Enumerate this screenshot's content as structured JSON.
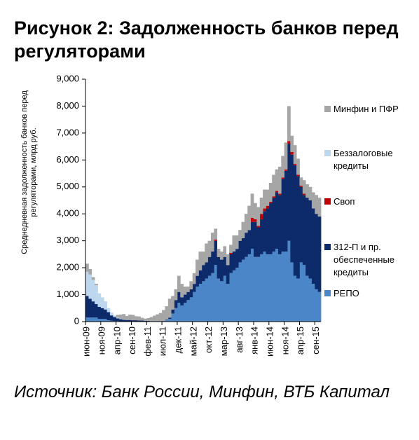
{
  "chart_data": {
    "type": "stacked-area",
    "title": "Рисунок 2: Задолженность банков перед регуляторами",
    "ylabel": [
      "Среднедневная задолженность банков перед",
      "регуляторами, млрд руб."
    ],
    "source": "Источник: Банк России, Минфин, ВТБ Капитал",
    "categories": [
      "июн-09",
      null,
      null,
      null,
      null,
      "ноя-09",
      null,
      null,
      null,
      null,
      "апр-10",
      null,
      null,
      null,
      null,
      "сен-10",
      null,
      null,
      null,
      null,
      "фев-11",
      null,
      null,
      null,
      null,
      "июл-11",
      null,
      null,
      null,
      null,
      "дек-11",
      null,
      null,
      null,
      null,
      "май-12",
      null,
      null,
      null,
      null,
      "окт-12",
      null,
      null,
      null,
      null,
      "мар-13",
      null,
      null,
      null,
      null,
      "авг-13",
      null,
      null,
      null,
      null,
      "янв-14",
      null,
      null,
      null,
      null,
      "июн-14",
      null,
      null,
      null,
      null,
      "ноя-14",
      null,
      null,
      null,
      null,
      "апр-15",
      null,
      null,
      null,
      null,
      "сен-15",
      null
    ],
    "ylim": [
      0,
      9000
    ],
    "yticks": [
      0,
      {
        "value": 1000,
        "label": "1,000"
      },
      {
        "value": 2000,
        "label": "2,000"
      },
      {
        "value": 3000,
        "label": "3,000"
      },
      {
        "value": 4000,
        "label": "4,000"
      },
      {
        "value": 5000,
        "label": "5,000"
      },
      {
        "value": 6000,
        "label": "6,000"
      },
      {
        "value": 7000,
        "label": "7,000"
      },
      {
        "value": 8000,
        "label": "8,000"
      },
      {
        "value": 9000,
        "label": "9,000"
      }
    ],
    "series": [
      {
        "name": "РЕПО",
        "color": "#4a86c8",
        "values": [
          150,
          150,
          150,
          150,
          100,
          100,
          100,
          50,
          30,
          20,
          20,
          10,
          10,
          10,
          10,
          10,
          10,
          10,
          10,
          10,
          10,
          10,
          10,
          10,
          10,
          20,
          50,
          100,
          300,
          500,
          700,
          600,
          700,
          800,
          900,
          1100,
          1300,
          1400,
          1500,
          1600,
          1700,
          1800,
          2100,
          1600,
          1500,
          1700,
          1400,
          1800,
          1900,
          2000,
          2200,
          2300,
          2400,
          2500,
          2700,
          2400,
          2400,
          2500,
          2600,
          2500,
          2500,
          2600,
          2700,
          2500,
          2600,
          2600,
          3000,
          2200,
          1700,
          1600,
          2200,
          2100,
          1700,
          1600,
          1400,
          1200,
          1100
        ]
      },
      {
        "name": "312-П и пр. обеспеченные кредиты",
        "color": "#0d2b6b",
        "values": [
          800,
          700,
          600,
          500,
          450,
          400,
          350,
          300,
          200,
          150,
          100,
          80,
          60,
          50,
          50,
          40,
          40,
          30,
          30,
          20,
          20,
          10,
          10,
          10,
          10,
          10,
          20,
          50,
          150,
          300,
          400,
          300,
          300,
          300,
          300,
          300,
          400,
          500,
          600,
          600,
          700,
          800,
          900,
          800,
          800,
          700,
          700,
          700,
          700,
          700,
          800,
          800,
          900,
          900,
          1000,
          1300,
          1100,
          1300,
          1500,
          1700,
          1900,
          2000,
          2100,
          2200,
          2700,
          3000,
          3600,
          4000,
          4100,
          3800,
          2800,
          2600,
          2900,
          2900,
          2800,
          2800,
          2800
        ]
      },
      {
        "name": "Своп",
        "color": "#c00000",
        "values": [
          0,
          0,
          0,
          0,
          0,
          0,
          0,
          0,
          0,
          0,
          0,
          0,
          0,
          0,
          0,
          0,
          0,
          0,
          0,
          0,
          0,
          0,
          0,
          0,
          0,
          0,
          0,
          0,
          0,
          0,
          0,
          0,
          0,
          0,
          0,
          0,
          0,
          0,
          0,
          0,
          0,
          0,
          50,
          0,
          0,
          0,
          0,
          50,
          0,
          0,
          0,
          0,
          0,
          0,
          150,
          100,
          50,
          200,
          100,
          100,
          50,
          50,
          50,
          50,
          50,
          50,
          100,
          100,
          50,
          50,
          50,
          50,
          0,
          0,
          0,
          0,
          0
        ]
      },
      {
        "name": "Беззалоговые кредиты",
        "color": "#bdd7ee",
        "values": [
          900,
          900,
          800,
          700,
          500,
          400,
          300,
          150,
          100,
          50,
          30,
          20,
          10,
          0,
          0,
          0,
          0,
          0,
          0,
          0,
          0,
          0,
          0,
          0,
          0,
          0,
          0,
          0,
          0,
          0,
          0,
          0,
          0,
          0,
          0,
          0,
          0,
          0,
          0,
          0,
          0,
          0,
          0,
          0,
          0,
          0,
          0,
          0,
          0,
          0,
          0,
          0,
          0,
          0,
          0,
          0,
          0,
          0,
          0,
          0,
          0,
          0,
          0,
          0,
          0,
          0,
          0,
          0,
          0,
          0,
          0,
          0,
          0,
          0,
          0,
          0,
          0
        ]
      },
      {
        "name": "Минфин  и ПФР",
        "color": "#a6a6a6",
        "values": [
          300,
          200,
          100,
          50,
          0,
          0,
          0,
          0,
          0,
          0,
          100,
          150,
          200,
          150,
          200,
          200,
          150,
          150,
          100,
          80,
          100,
          150,
          200,
          250,
          300,
          400,
          500,
          700,
          500,
          400,
          600,
          500,
          300,
          200,
          300,
          400,
          600,
          700,
          500,
          700,
          600,
          700,
          400,
          300,
          300,
          400,
          400,
          300,
          600,
          500,
          400,
          600,
          700,
          900,
          900,
          600,
          700,
          600,
          700,
          600,
          700,
          800,
          800,
          1000,
          800,
          1000,
          1300,
          600,
          700,
          600,
          300,
          500,
          500,
          500,
          600,
          700,
          700
        ]
      }
    ]
  }
}
